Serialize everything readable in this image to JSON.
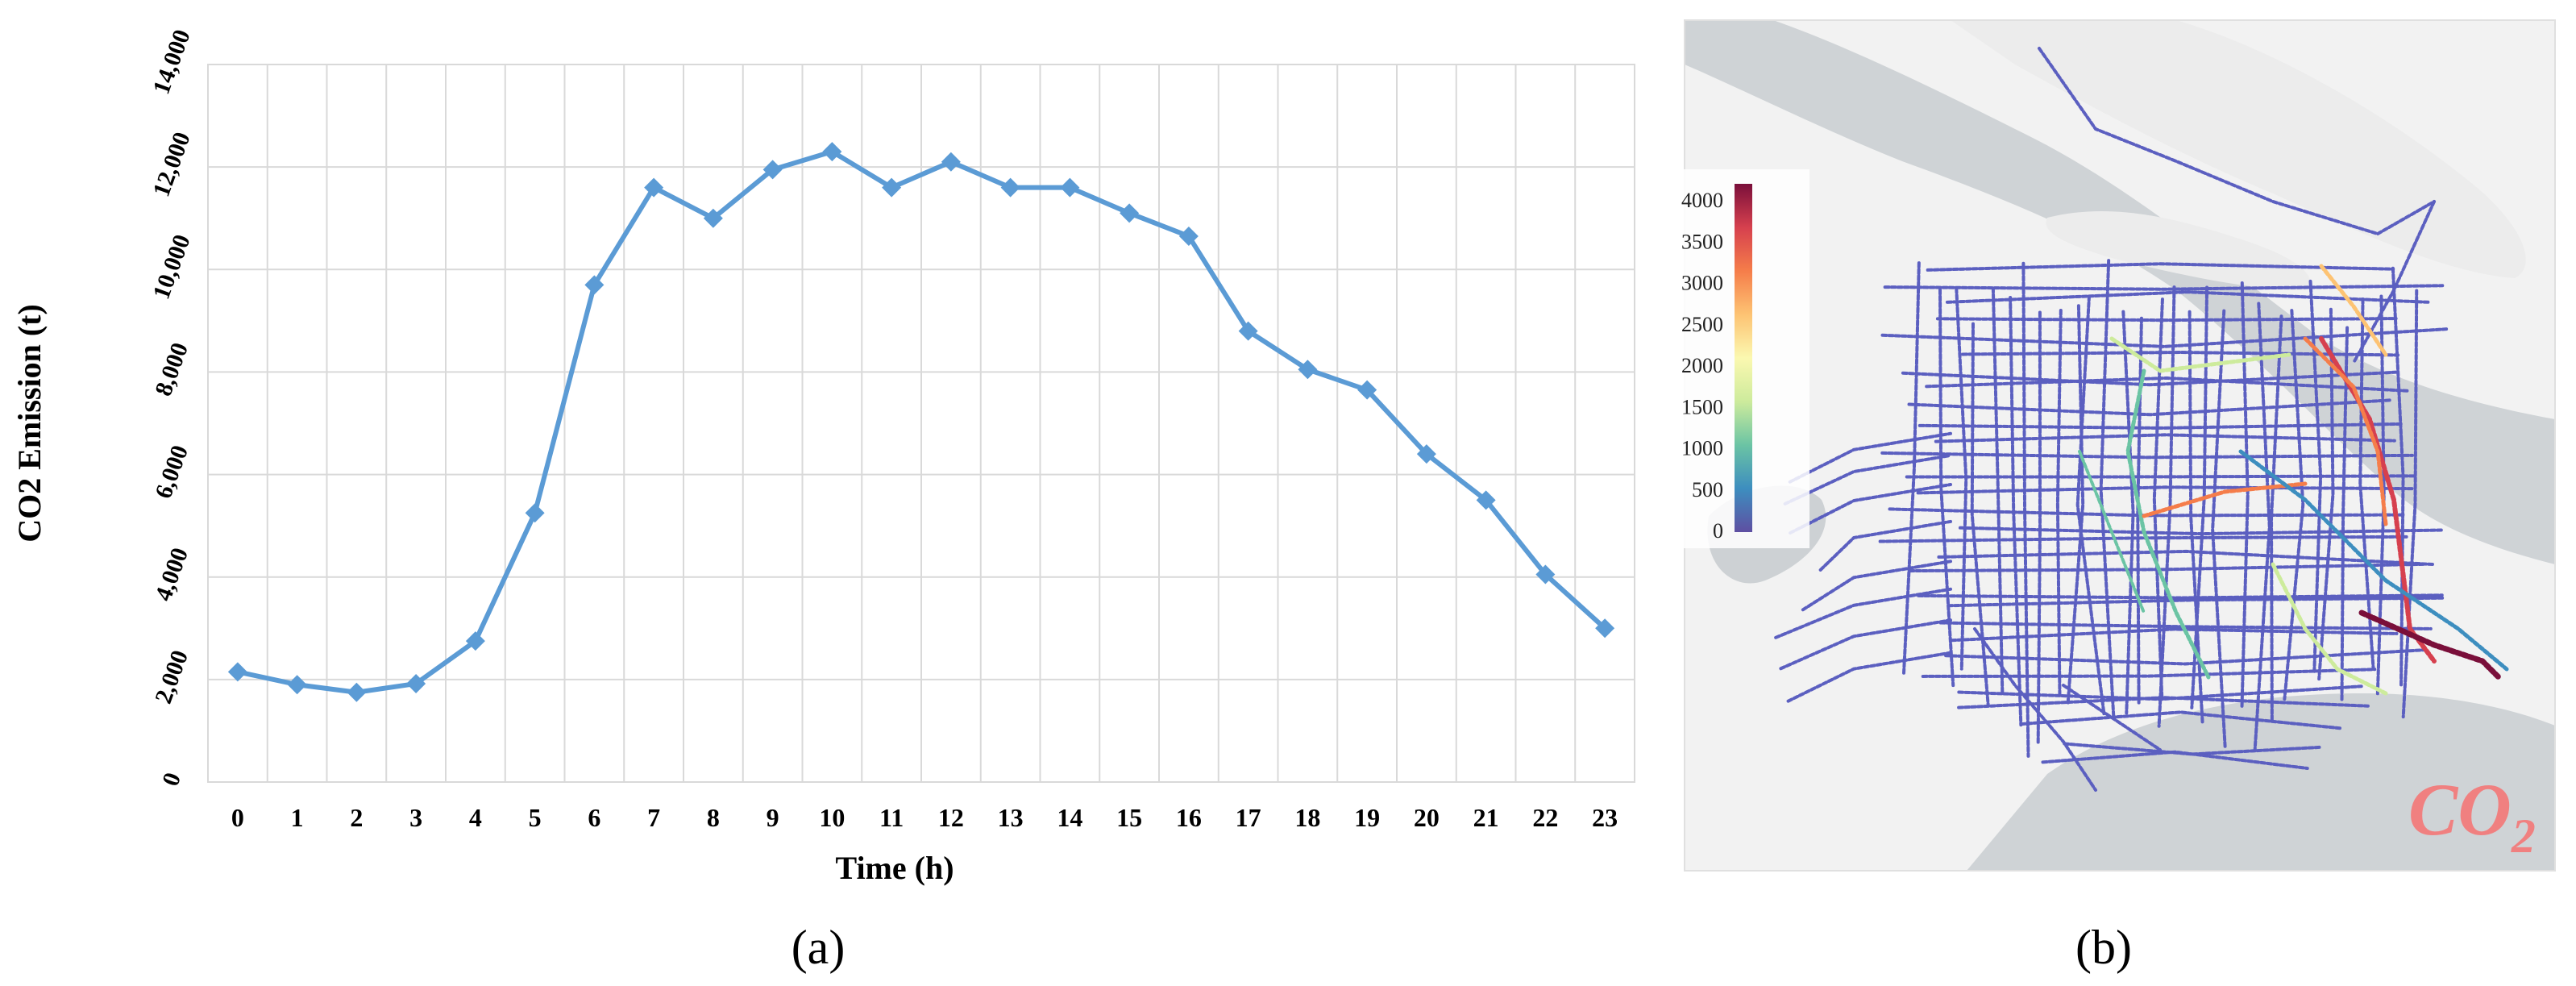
{
  "panel_a": {
    "caption": "(a)",
    "chart_data": {
      "type": "line",
      "title": "",
      "xlabel": "Time (h)",
      "ylabel": "CO2 Emission (t)",
      "ylim": [
        0,
        14000
      ],
      "yticks": [
        0,
        2000,
        4000,
        6000,
        8000,
        10000,
        12000,
        14000
      ],
      "ytick_labels": [
        "0",
        "2,000",
        "4,000",
        "6,000",
        "8,000",
        "10,000",
        "12,000",
        "14,000"
      ],
      "categories": [
        "0",
        "1",
        "2",
        "3",
        "4",
        "5",
        "6",
        "7",
        "8",
        "9",
        "10",
        "11",
        "12",
        "13",
        "14",
        "15",
        "16",
        "17",
        "18",
        "19",
        "20",
        "21",
        "22",
        "23"
      ],
      "series": [
        {
          "name": "",
          "color": "#5b9bd5",
          "marker": "diamond",
          "values": [
            2150,
            1900,
            1750,
            1920,
            2750,
            5250,
            9700,
            11600,
            11000,
            11950,
            12300,
            11600,
            12100,
            11600,
            11600,
            11100,
            10650,
            8800,
            8050,
            7650,
            6400,
            5500,
            4050,
            3000
          ]
        }
      ],
      "grid": true,
      "legend": "none"
    }
  },
  "panel_b": {
    "caption": "(b)",
    "pollutant_label": "CO",
    "pollutant_subscript": "2",
    "pollutant_color": "#f08080",
    "colorbar": {
      "tick_labels": [
        "4000",
        "3500",
        "3000",
        "2500",
        "2000",
        "1500",
        "1000",
        "500",
        "0"
      ],
      "colors": [
        "#7a0f3a",
        "#d6404e",
        "#f57d4a",
        "#fdc373",
        "#fbf8b0",
        "#cdeb9c",
        "#6bc4a4",
        "#3d8ebf",
        "#5e4fa2"
      ]
    },
    "map": {
      "water_color": "#cfd3d6",
      "land_color": "#f2f2f2",
      "road_base_color": "#5b5fc0"
    }
  }
}
